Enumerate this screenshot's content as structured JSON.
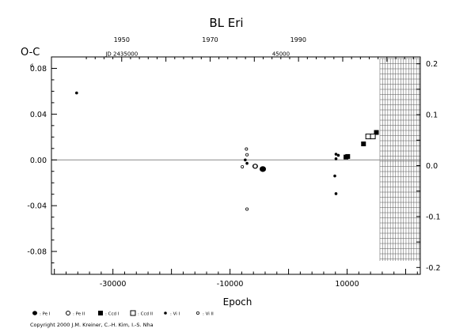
{
  "chart_data": {
    "type": "scatter",
    "title": "BL  Eri",
    "ylabel": "O-C",
    "ylabel_unit": "d",
    "xlabel": "Epoch",
    "xlim": [
      -40500,
      22500
    ],
    "ylim_left": [
      -0.1,
      0.09
    ],
    "ylim_right": [
      -0.2135,
      0.2135
    ],
    "x_ticks": [
      -30000,
      -10000,
      10000
    ],
    "x_tick_labels": [
      "-30000",
      "-10000",
      "10000"
    ],
    "y_left_ticks": [
      0.08,
      0.04,
      0.0,
      -0.04,
      -0.08
    ],
    "y_left_tick_labels": [
      "0.08",
      "0.04",
      "0.00",
      "-0.04",
      "-0.08"
    ],
    "y_right_ticks": [
      0.2,
      0.1,
      0.0,
      -0.1,
      -0.2
    ],
    "y_right_tick_labels": [
      "0.2",
      "0.1",
      "0.0",
      "-0.1",
      "-0.2"
    ],
    "top_axis_year_ticks": [
      {
        "year": "1950",
        "epoch": -28500
      },
      {
        "year": "1970",
        "epoch": -13400
      },
      {
        "year": "1990",
        "epoch": 1650
      }
    ],
    "top_axis_jd_labels": [
      {
        "text": "JD 2435000",
        "epoch": -28500
      },
      {
        "text": "45000",
        "epoch": -1300
      }
    ],
    "zero_line": 0.0,
    "future_region_start": 15600,
    "series": [
      {
        "name": "Pe I",
        "marker": "filled-circle",
        "points": [
          {
            "x": -5700,
            "y": -0.0055,
            "s": 7
          },
          {
            "x": -4400,
            "y": -0.008,
            "s": 8
          }
        ]
      },
      {
        "name": "Pe II",
        "marker": "open-circle",
        "points": [
          {
            "x": -5700,
            "y": -0.0055,
            "s": 5
          }
        ]
      },
      {
        "name": "Ccd I",
        "marker": "filled-square",
        "points": [
          {
            "x": 9800,
            "y": 0.0025
          },
          {
            "x": 10100,
            "y": 0.003
          },
          {
            "x": 12800,
            "y": 0.014
          },
          {
            "x": 15000,
            "y": 0.024
          }
        ]
      },
      {
        "name": "Ccd II",
        "marker": "open-square",
        "points": [
          {
            "x": 13600,
            "y": 0.0205
          },
          {
            "x": 14400,
            "y": 0.0205
          }
        ]
      },
      {
        "name": "Vi I",
        "marker": "small-dot",
        "points": [
          {
            "x": -36200,
            "y": 0.0585
          },
          {
            "x": -7400,
            "y": 0.0
          },
          {
            "x": -7100,
            "y": -0.003
          },
          {
            "x": 8100,
            "y": 0.005
          },
          {
            "x": 8100,
            "y": 0.001
          },
          {
            "x": 8500,
            "y": 0.004
          },
          {
            "x": 7900,
            "y": -0.014
          },
          {
            "x": 8100,
            "y": -0.0295
          }
        ]
      },
      {
        "name": "Vi II",
        "marker": "small-open-circle",
        "points": [
          {
            "x": -7200,
            "y": 0.0095
          },
          {
            "x": -7100,
            "y": 0.0045
          },
          {
            "x": -7900,
            "y": -0.006
          },
          {
            "x": -7100,
            "y": -0.043
          }
        ]
      }
    ]
  },
  "legend": [
    {
      "marker": "filled-circle",
      "label": ": Pe I"
    },
    {
      "marker": "open-circle",
      "label": ": Pe II"
    },
    {
      "marker": "filled-square",
      "label": ": Ccd I"
    },
    {
      "marker": "open-square",
      "label": ": Ccd II"
    },
    {
      "marker": "small-dot",
      "label": ": Vi I"
    },
    {
      "marker": "small-open-circle",
      "label": ": Vi II"
    }
  ],
  "copyright": "Copyright 2000 J.M. Kreiner, C.-H. Kim, I.-S. Nha"
}
